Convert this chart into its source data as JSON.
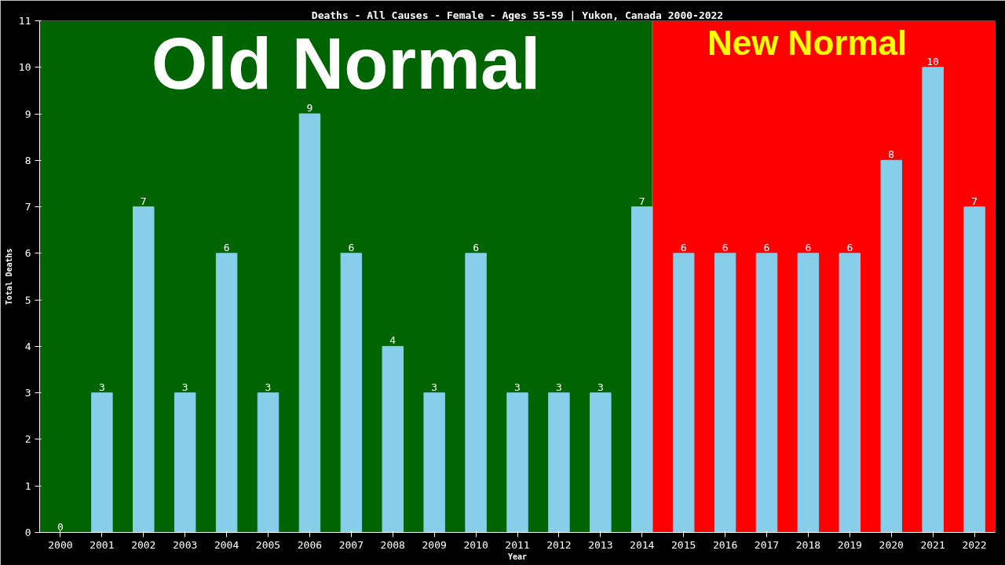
{
  "chart_data": {
    "type": "bar",
    "title": "Deaths - All Causes - Female - Ages 55-59 | Yukon, Canada 2000-2022",
    "xlabel": "Year",
    "ylabel": "Total Deaths",
    "x": [
      2000,
      2001,
      2002,
      2003,
      2004,
      2005,
      2006,
      2007,
      2008,
      2009,
      2010,
      2011,
      2012,
      2013,
      2014,
      2015,
      2016,
      2017,
      2018,
      2019,
      2020,
      2021,
      2022
    ],
    "values": [
      0,
      3,
      7,
      3,
      6,
      3,
      9,
      6,
      4,
      3,
      6,
      3,
      3,
      3,
      7,
      6,
      6,
      6,
      6,
      6,
      8,
      10,
      7
    ],
    "color": "#87ceeb",
    "data_labels": true,
    "xlim": [
      1999.5,
      2022.5
    ],
    "xticks": [
      2000,
      2001,
      2002,
      2003,
      2004,
      2005,
      2006,
      2007,
      2008,
      2009,
      2010,
      2011,
      2012,
      2013,
      2014,
      2015,
      2016,
      2017,
      2018,
      2019,
      2020,
      2021,
      2022
    ],
    "ylim": [
      0,
      11
    ],
    "yticks": [
      0,
      1,
      2,
      3,
      4,
      5,
      6,
      7,
      8,
      9,
      10,
      11
    ],
    "bands": [
      {
        "axis": "x",
        "from": 1999.5,
        "to": 2014.25,
        "label": "Old Normal",
        "color": "#006400"
      },
      {
        "axis": "x",
        "from": 2014.25,
        "to": 2022.5,
        "label": "New Normal",
        "color": "#ff0000"
      }
    ],
    "grid": false
  }
}
